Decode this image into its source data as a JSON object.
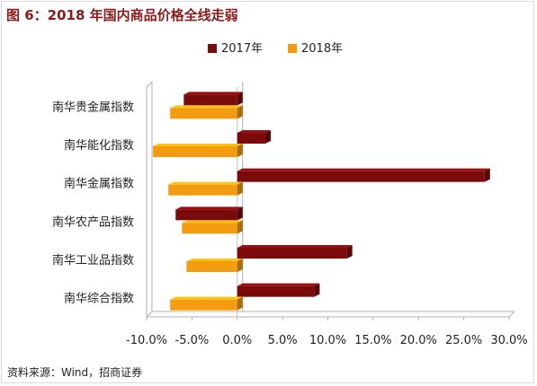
{
  "figure": {
    "title": "图 6：2018 年国内商品价格全线走弱",
    "source": "资料来源：Wind，招商证券"
  },
  "chart_data": {
    "type": "bar",
    "orientation": "horizontal",
    "title": "",
    "xlabel": "",
    "ylabel": "",
    "categories": [
      "南华贵金属指数",
      "南华能化指数",
      "南华金属指数",
      "南华农产品指数",
      "南华工业品指数",
      "南华综合指数"
    ],
    "series": [
      {
        "name": "2017年",
        "color": "#7b0b0b",
        "values": [
          -5.9,
          3.1,
          27.3,
          -6.8,
          12.1,
          8.5
        ]
      },
      {
        "name": "2018年",
        "color": "#f39c12",
        "values": [
          -7.4,
          -9.3,
          -7.6,
          -6.1,
          -5.6,
          -7.4
        ]
      }
    ],
    "xlim": [
      -10,
      30
    ],
    "xticks": [
      -10,
      -5,
      0,
      5,
      10,
      15,
      20,
      25,
      30
    ],
    "xtick_labels": [
      "-10.0%",
      "-5.0%",
      "0.0%",
      "5.0%",
      "10.0%",
      "15.0%",
      "20.0%",
      "25.0%",
      "30.0%"
    ],
    "legend_position": "top-center",
    "grid": false
  }
}
